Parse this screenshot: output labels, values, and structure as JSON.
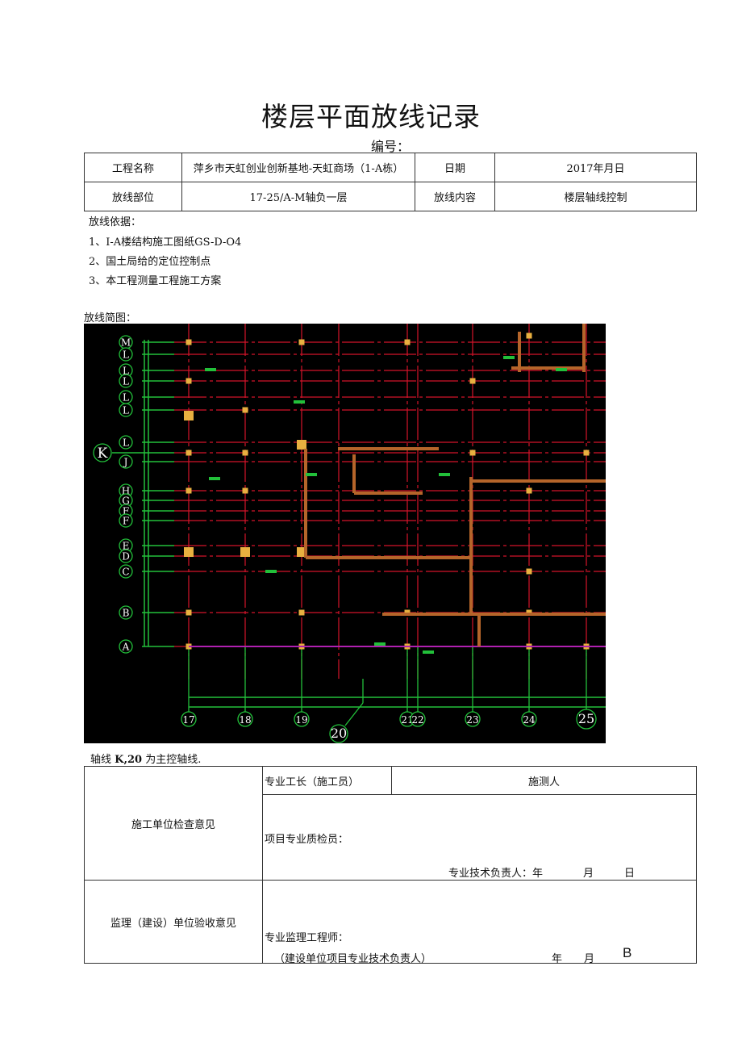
{
  "title": "楼层平面放线记录",
  "serial_label": "编号：",
  "info_table": {
    "project_label": "工程名称",
    "project_value": "萍乡市天虹创业创新基地-天虹商场（1-A栋）",
    "date_label": "日期",
    "date_value": "2017年月日",
    "location_label": "放线部位",
    "location_value": "17-25/A-M轴负一层",
    "content_label": "放线内容",
    "content_value": "楼层轴线控制"
  },
  "basis": {
    "heading": "放线依据：",
    "items": [
      "1、I-A楼结构施工图纸GS-D-O4",
      "2、国土局给的定位控制点",
      "3、本工程测量工程施工方案"
    ]
  },
  "sketch_label": "放线简图：",
  "drawing": {
    "row_axes": [
      "M",
      "L",
      "L",
      "L",
      "L",
      "L",
      "L",
      "K",
      "J",
      "H",
      "G",
      "F",
      "F",
      "E",
      "D",
      "C",
      "B",
      "A"
    ],
    "col_axes": [
      "17",
      "18",
      "19",
      "20",
      "21",
      "22",
      "23",
      "24",
      "25"
    ],
    "colors": {
      "background": "#000000",
      "grid": "#d4142a",
      "axis": "#22c03a",
      "column": "#e8b040",
      "wall": "#b5652a",
      "slab": "#b020b0"
    }
  },
  "main_axis_note": {
    "prefix": "轴线 ",
    "bold": "K,20",
    "suffix": " 为主控轴线."
  },
  "sign_table": {
    "construction_label": "施工单位检查意见",
    "foreman_label": "专业工长（施工员）",
    "surveyor_label": "施测人",
    "inspector_label": "项目专业质检员：",
    "tech_lead_label": "专业技术负责人：年",
    "month": "月",
    "day": "日",
    "supervision_label": "监理（建设）单位验收意见",
    "engineer_label": "专业监理工程师：",
    "owner_lead_label": "（建设单位项目专业技术负责人）",
    "year2": "年",
    "month2": "月",
    "day2": "B"
  }
}
